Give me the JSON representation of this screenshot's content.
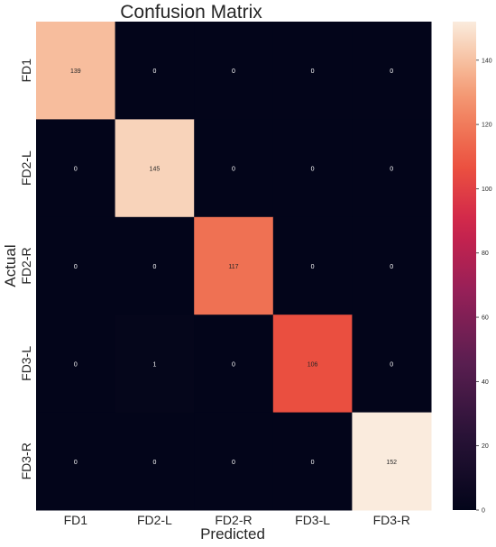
{
  "chart_data": {
    "type": "heatmap",
    "title": "Confusion Matrix",
    "xlabel": "Predicted",
    "ylabel": "Actual",
    "x_categories": [
      "FD1",
      "FD2-L",
      "FD2-R",
      "FD3-L",
      "FD3-R"
    ],
    "y_categories": [
      "FD1",
      "FD2-L",
      "FD2-R",
      "FD3-L",
      "FD3-R"
    ],
    "values": [
      [
        139,
        0,
        0,
        0,
        0
      ],
      [
        0,
        145,
        0,
        0,
        0
      ],
      [
        0,
        0,
        117,
        0,
        0
      ],
      [
        0,
        1,
        0,
        106,
        0
      ],
      [
        0,
        0,
        0,
        0,
        152
      ]
    ],
    "colorbar": {
      "min": 0,
      "max": 152,
      "ticks": [
        0,
        20,
        40,
        60,
        80,
        100,
        120,
        140
      ]
    },
    "colormap": "rocket",
    "grid": false
  }
}
